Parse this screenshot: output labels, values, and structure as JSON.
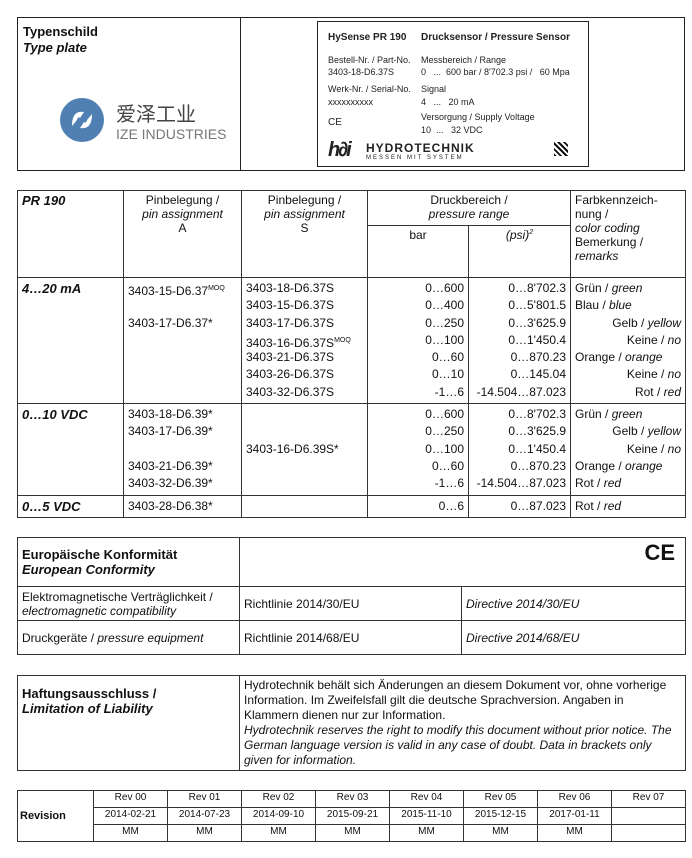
{
  "type_plate": {
    "title_de": "Typenschild",
    "title_en": "Type plate",
    "logo": {
      "text_cn": "爱泽工业",
      "text_en": "IZE INDUSTRIES",
      "color": "#4f7fb3"
    },
    "plate": {
      "product": "HySense PR 190",
      "description": "Drucksensor / Pressure Sensor",
      "part_label": "Bestell-Nr. / Part-No.",
      "part_value": "3403-18-D6.37S",
      "range_label": "Messbereich / Range",
      "range_value": "0   ...  600 bar / 8'702.3 psi /   60 Mpa",
      "serial_label": "Werk-Nr. / Serial-No.",
      "serial_value": "xxxxxxxxxx",
      "signal_label": "Signal",
      "signal_value": "4   ...   20 mA",
      "ce": "CE",
      "supply_label": "Versorgung / Supply Voltage",
      "supply_value": "10  ...   32 VDC",
      "brand": "HYDROTECHNIK",
      "brand_tagline": "MESSEN MIT SYSTEM"
    }
  },
  "main_table": {
    "header": {
      "model": "PR 190",
      "pinA_de": "Pinbelegung /",
      "pinA_en": "pin assignment",
      "pinA_code": "A",
      "pinS_de": "Pinbelegung /",
      "pinS_en": "pin assignment",
      "pinS_code": "S",
      "range_de": "Druckbereich /",
      "range_en": "pressure range",
      "bar": "bar",
      "psi": "(psi)",
      "psi_sup": "2",
      "color_de": "Farbkennzeich-nung /",
      "color_en": "color coding",
      "remark_de": "Bemerkung /",
      "remark_en": "remarks"
    },
    "groups": [
      {
        "label": "4…20 mA",
        "rows": [
          {
            "a": "3403-15-D6.37",
            "a_sup": "MOQ",
            "s": "3403-18-D6.37S",
            "bar": "0…600",
            "psi": "0…8'702.3",
            "c_de": "Grün",
            "c_en": "green"
          },
          {
            "a": "",
            "s": "3403-15-D6.37S",
            "bar": "0…400",
            "psi": "0…5'801.5",
            "c_de": "Blau",
            "c_en": "blue"
          },
          {
            "a": "3403-17-D6.37*",
            "s": "3403-17-D6.37S",
            "bar": "0…250",
            "psi": "0…3'625.9",
            "c_de": "Gelb",
            "c_en": "yellow"
          },
          {
            "a": "",
            "s": "3403-16-D6.37S",
            "s_sup": "MOQ",
            "bar": "0…100",
            "psi": "0…1'450.4",
            "c_de": "Keine",
            "c_en": "no"
          },
          {
            "a": "",
            "s": "3403-21-D6.37S",
            "bar": "0…60",
            "psi": "0…870.23",
            "c_de": "Orange",
            "c_en": "orange"
          },
          {
            "a": "",
            "s": "3403-26-D6.37S",
            "bar": "0…10",
            "psi": "0…145.04",
            "c_de": "Keine",
            "c_en": "no"
          },
          {
            "a": "",
            "s": "3403-32-D6.37S",
            "bar": "-1…6",
            "psi": "-14.504…87.023",
            "c_de": "Rot",
            "c_en": "red"
          }
        ]
      },
      {
        "label": "0…10 VDC",
        "rows": [
          {
            "a": "3403-18-D6.39*",
            "s": "",
            "bar": "0…600",
            "psi": "0…8'702.3",
            "c_de": "Grün",
            "c_en": "green"
          },
          {
            "a": "3403-17-D6.39*",
            "s": "",
            "bar": "0…250",
            "psi": "0…3'625.9",
            "c_de": "Gelb",
            "c_en": "yellow"
          },
          {
            "a": "",
            "s": "3403-16-D6.39S*",
            "bar": "0…100",
            "psi": "0…1'450.4",
            "c_de": "Keine",
            "c_en": "no"
          },
          {
            "a": "3403-21-D6.39*",
            "s": "",
            "bar": "0…60",
            "psi": "0…870.23",
            "c_de": "Orange",
            "c_en": "orange"
          },
          {
            "a": "3403-32-D6.39*",
            "s": "",
            "bar": "-1…6",
            "psi": "-14.504…87.023",
            "c_de": "Rot",
            "c_en": "red"
          }
        ]
      },
      {
        "label": "0…5 VDC",
        "rows": [
          {
            "a": "3403-28-D6.38*",
            "s": "",
            "bar": "0…6",
            "psi": "0…87.023",
            "c_de": "Rot",
            "c_en": "red"
          }
        ]
      }
    ]
  },
  "conformity": {
    "title_de": "Europäische Konformität",
    "title_en": "European Conformity",
    "ce_mark": "CE",
    "rows": [
      {
        "label_de": "Elektromagnetische Verträglichkeit /",
        "label_en": "electromagnetic compatibility",
        "de": "Richtlinie 2014/30/EU",
        "en": "Directive 2014/30/EU"
      },
      {
        "label_de": "Druckgeräte /",
        "label_en": "pressure equipment",
        "de": "Richtlinie 2014/68/EU",
        "en": "Directive 2014/68/EU"
      }
    ]
  },
  "liability": {
    "title_de": "Haftungsausschluss /",
    "title_en": "Limitation of Liability",
    "text_de": "Hydrotechnik behält sich Änderungen an diesem Dokument vor, ohne vorherige Information. Im Zweifelsfall gilt die deutsche Sprachversion. Angaben in Klammern dienen nur zur Information.",
    "text_en": "Hydrotechnik reserves the right to modify this document without prior notice. The German language version is valid in any case of doubt. Data in brackets only given for information."
  },
  "revision": {
    "label": "Revision",
    "revs": [
      "Rev 00",
      "Rev 01",
      "Rev 02",
      "Rev 03",
      "Rev 04",
      "Rev 05",
      "Rev 06",
      "Rev 07"
    ],
    "dates": [
      "2014-02-21",
      "2014-07-23",
      "2014-09-10",
      "2015-09-21",
      "2015-11-10",
      "2015-12-15",
      "2017-01-11",
      ""
    ],
    "authors": [
      "MM",
      "MM",
      "MM",
      "MM",
      "MM",
      "MM",
      "MM",
      ""
    ]
  }
}
